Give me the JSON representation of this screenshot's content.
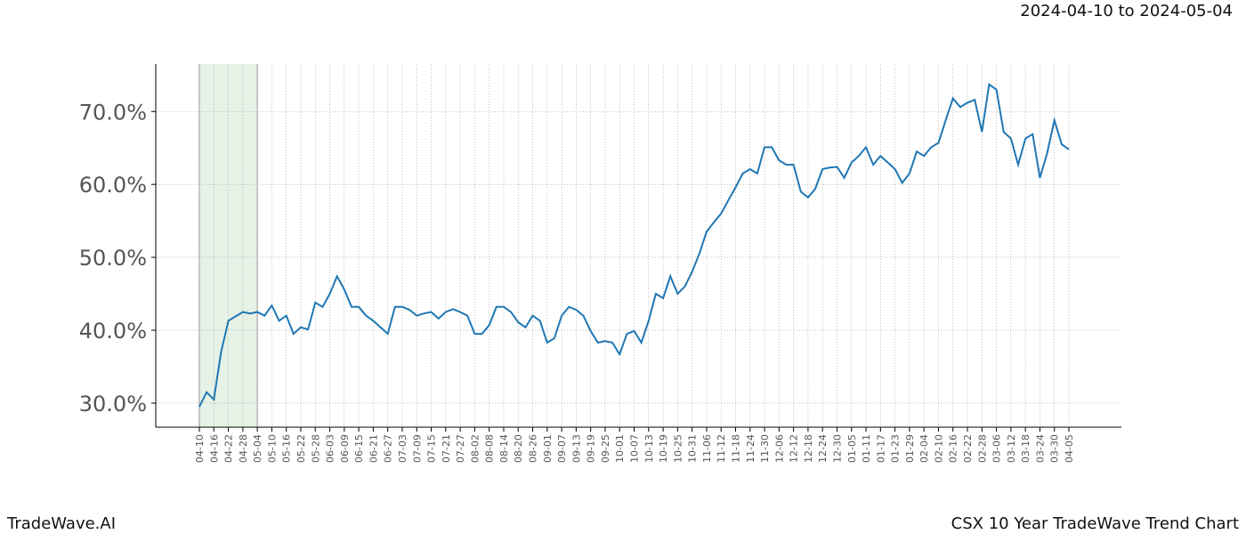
{
  "chart_data": {
    "type": "line",
    "title": "2024-04-10 to 2024-05-04",
    "footer_left": "TradeWave.AI",
    "footer_right": "CSX 10 Year TradeWave Trend Chart",
    "highlight": [
      "04-10",
      "05-04"
    ],
    "highlight_color": "#e6f2e6",
    "color": "#1f77b4",
    "grid": true,
    "ylim": [
      26.7,
      76.5
    ],
    "yticks": [
      {
        "value": 30,
        "label": "30.0%"
      },
      {
        "value": 40,
        "label": "40.0%"
      },
      {
        "value": 50,
        "label": "50.0%"
      },
      {
        "value": 60,
        "label": "60.0%"
      },
      {
        "value": 70,
        "label": "70.0%"
      }
    ],
    "categories": [
      "04-10",
      null,
      "04-16",
      null,
      "04-22",
      null,
      "04-28",
      null,
      "05-04",
      null,
      "05-10",
      null,
      "05-16",
      null,
      "05-22",
      null,
      "05-28",
      null,
      "06-03",
      null,
      "06-09",
      null,
      "06-15",
      null,
      "06-21",
      null,
      "06-27",
      null,
      "07-03",
      null,
      "07-09",
      null,
      "07-15",
      null,
      "07-21",
      null,
      "07-27",
      null,
      "08-02",
      null,
      "08-08",
      null,
      "08-14",
      null,
      "08-20",
      null,
      "08-26",
      null,
      "09-01",
      null,
      "09-07",
      null,
      "09-13",
      null,
      "09-19",
      null,
      "09-25",
      null,
      "10-01",
      null,
      "10-07",
      null,
      "10-13",
      null,
      "10-19",
      null,
      "10-25",
      null,
      "10-31",
      null,
      "11-06",
      null,
      "11-12",
      null,
      "11-18",
      null,
      "11-24",
      null,
      "11-30",
      null,
      "12-06",
      null,
      "12-12",
      null,
      "12-18",
      null,
      "12-24",
      null,
      "12-30",
      null,
      "01-05",
      null,
      "01-11",
      null,
      "01-17",
      null,
      "01-23",
      null,
      "01-29",
      null,
      "02-04",
      null,
      "02-10",
      null,
      "02-16",
      null,
      "02-22",
      null,
      "02-28",
      null,
      "03-06",
      null,
      "03-12",
      null,
      "03-18",
      null,
      "03-24",
      null,
      "03-30",
      null,
      "04-05"
    ],
    "values": [
      29.5,
      31.5,
      30.5,
      37,
      41.3,
      41.9,
      42.5,
      42.3,
      42.5,
      42,
      43.4,
      41.3,
      42,
      39.5,
      40.4,
      40.1,
      43.8,
      43.2,
      45,
      47.4,
      45.6,
      43.2,
      43.2,
      42,
      41.3,
      40.4,
      39.5,
      43.2,
      43.2,
      42.8,
      42,
      42.3,
      42.5,
      41.6,
      42.5,
      42.9,
      42.5,
      42,
      39.5,
      39.5,
      40.7,
      43.2,
      43.2,
      42.5,
      41.1,
      40.4,
      42,
      41.3,
      38.3,
      38.9,
      42,
      43.2,
      42.8,
      42,
      39.9,
      38.3,
      38.5,
      38.3,
      36.7,
      39.5,
      39.9,
      38.3,
      41.3,
      45,
      44.4,
      47.4,
      45,
      46,
      48,
      50.5,
      53.5,
      54.8,
      56,
      57.8,
      59.6,
      61.5,
      62.1,
      61.5,
      65.1,
      65.1,
      63.3,
      62.7,
      62.7,
      59,
      58.2,
      59.4,
      62.1,
      62.3,
      62.4,
      60.9,
      63,
      63.9,
      65.1,
      62.7,
      63.9,
      63,
      62.1,
      60.2,
      61.5,
      64.5,
      63.9,
      65.1,
      65.7,
      68.8,
      71.8,
      70.6,
      71.2,
      71.6,
      67.2,
      73.7,
      73,
      67.2,
      66.3,
      62.7,
      66.3,
      66.9,
      60.9,
      64.3,
      68.8,
      65.5,
      64.8
    ]
  }
}
